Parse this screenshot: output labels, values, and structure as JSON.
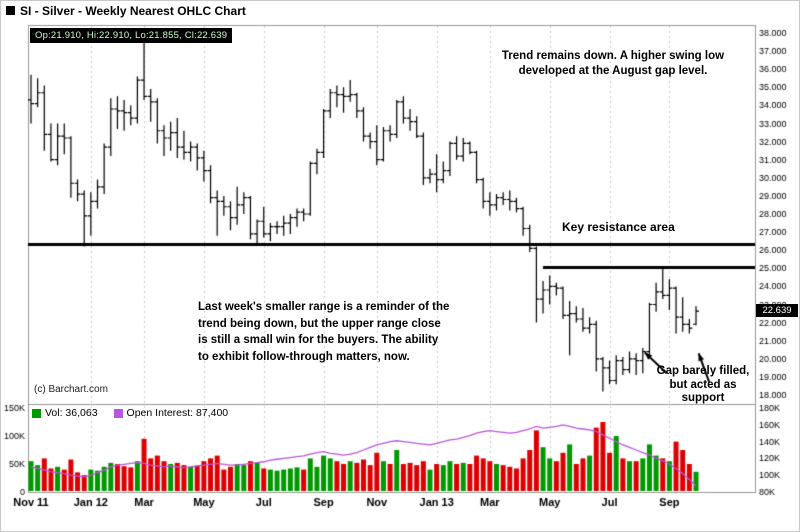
{
  "header": {
    "title": "SI - Silver - Weekly Nearest OHLC Chart"
  },
  "quote": {
    "label": "Op:21.910, Hi:22.910, Lo:21.855, Cl:22.639"
  },
  "annotations": {
    "trend": "Trend remains down.  A higher swing low\ndeveloped at the August gap level.",
    "key_resistance": "Key resistance area",
    "range_comment": "Last week's smaller range is a reminder of the\ntrend being down, but the upper range close\nis still a small win for the buyers.  The ability\nto exhibit follow-through matters, now.",
    "gap": "Gap barely filled,\nbut acted as\nsupport",
    "copyright": "(c) Barchart.com"
  },
  "legend": {
    "volume": "Vol: 36,063",
    "open_interest": "Open Interest: 87,400"
  },
  "colors": {
    "up_volume": "#009900",
    "down_volume": "#dd0000",
    "open_interest": "#bb55dd",
    "bars": "#000000",
    "grid": "#cccccc",
    "border": "#999999",
    "resistance": "#000000"
  },
  "chart_data": {
    "type": "ohlc",
    "title": "SI - Silver - Weekly Nearest OHLC Chart",
    "period": "weekly",
    "last_price": 22.639,
    "last_price_label": "22.639",
    "price_axis": {
      "min": 18,
      "max": 38,
      "tick_step": 1,
      "ticks": [
        "38.000",
        "37.000",
        "36.000",
        "35.000",
        "34.000",
        "33.000",
        "32.000",
        "31.000",
        "30.000",
        "29.000",
        "28.000",
        "27.000",
        "26.000",
        "25.000",
        "24.000",
        "23.000",
        "22.000",
        "21.000",
        "20.000",
        "19.000",
        "18.000"
      ]
    },
    "volume_axis_left": {
      "min": 0,
      "max": 150,
      "ticks": [
        {
          "label": "150K",
          "value": 150
        },
        {
          "label": "100K",
          "value": 100
        },
        {
          "label": "50K",
          "value": 50
        },
        {
          "label": "0",
          "value": 0
        }
      ]
    },
    "oi_axis_right": {
      "min": 80,
      "max": 180,
      "ticks": [
        {
          "label": "180K",
          "value": 180
        },
        {
          "label": "160K",
          "value": 160
        },
        {
          "label": "140K",
          "value": 140
        },
        {
          "label": "120K",
          "value": 120
        },
        {
          "label": "100K",
          "value": 100
        },
        {
          "label": "80K",
          "value": 80
        }
      ]
    },
    "x_axis": {
      "labels": [
        {
          "label": "Nov 11",
          "index": 0
        },
        {
          "label": "Jan 12",
          "index": 9
        },
        {
          "label": "Mar",
          "index": 17
        },
        {
          "label": "May",
          "index": 26
        },
        {
          "label": "Jul",
          "index": 35
        },
        {
          "label": "Sep",
          "index": 44
        },
        {
          "label": "Nov",
          "index": 52
        },
        {
          "label": "Jan 13",
          "index": 61
        },
        {
          "label": "Mar",
          "index": 69
        },
        {
          "label": "May",
          "index": 78
        },
        {
          "label": "Jul",
          "index": 87
        },
        {
          "label": "Sep",
          "index": 96
        }
      ]
    },
    "resistance_lines": [
      {
        "price": 26.35,
        "from_bar": 0,
        "to_right_edge": true
      },
      {
        "price": 25.05,
        "from_bar": 77,
        "to_right_edge": true
      }
    ],
    "arrows": [
      {
        "tail": {
          "bar": 95.6,
          "price": 19.2
        },
        "tip": {
          "bar": 92.3,
          "price": 20.35
        }
      },
      {
        "tail": {
          "bar": 102.0,
          "price": 18.7
        },
        "tip": {
          "bar": 100.4,
          "price": 20.3
        }
      }
    ],
    "bars": [
      [
        34.3,
        35.7,
        33.0,
        34.1
      ],
      [
        34.1,
        35.5,
        33.9,
        34.7
      ],
      [
        34.7,
        35.1,
        31.5,
        32.4
      ],
      [
        32.4,
        33.0,
        30.9,
        31.0
      ],
      [
        31.0,
        33.0,
        30.7,
        32.3
      ],
      [
        32.3,
        33.0,
        31.3,
        32.2
      ],
      [
        32.2,
        32.3,
        28.9,
        29.7
      ],
      [
        29.7,
        29.9,
        28.7,
        29.1
      ],
      [
        29.1,
        29.3,
        26.2,
        27.9
      ],
      [
        27.9,
        29.2,
        26.8,
        28.7
      ],
      [
        28.7,
        29.9,
        28.3,
        29.5
      ],
      [
        29.5,
        31.9,
        29.1,
        31.7
      ],
      [
        31.7,
        34.4,
        31.2,
        33.8
      ],
      [
        33.8,
        34.5,
        32.7,
        33.7
      ],
      [
        33.7,
        34.3,
        32.6,
        33.6
      ],
      [
        33.6,
        34.0,
        32.9,
        33.3
      ],
      [
        33.3,
        35.6,
        33.0,
        35.4
      ],
      [
        35.4,
        37.5,
        34.3,
        34.5
      ],
      [
        34.5,
        34.9,
        33.1,
        34.2
      ],
      [
        34.2,
        34.4,
        31.9,
        32.6
      ],
      [
        32.6,
        32.9,
        31.2,
        32.2
      ],
      [
        32.2,
        33.1,
        31.5,
        32.5
      ],
      [
        32.5,
        33.3,
        31.1,
        31.7
      ],
      [
        31.7,
        32.6,
        31.0,
        31.4
      ],
      [
        31.4,
        32.0,
        30.9,
        31.7
      ],
      [
        31.7,
        31.9,
        30.4,
        31.1
      ],
      [
        31.1,
        31.5,
        29.8,
        30.4
      ],
      [
        30.4,
        30.7,
        28.6,
        28.9
      ],
      [
        28.9,
        29.3,
        26.8,
        28.7
      ],
      [
        28.7,
        29.0,
        27.9,
        28.4
      ],
      [
        28.4,
        28.7,
        27.1,
        27.8
      ],
      [
        27.8,
        29.5,
        27.4,
        28.5
      ],
      [
        28.5,
        29.2,
        28.0,
        28.9
      ],
      [
        28.9,
        29.0,
        26.6,
        26.9
      ],
      [
        26.9,
        27.7,
        26.3,
        27.6
      ],
      [
        27.6,
        28.4,
        26.7,
        26.9
      ],
      [
        26.9,
        27.5,
        26.5,
        27.3
      ],
      [
        27.3,
        27.6,
        26.9,
        27.3
      ],
      [
        27.3,
        27.9,
        26.8,
        27.5
      ],
      [
        27.5,
        28.0,
        26.9,
        27.8
      ],
      [
        27.8,
        28.3,
        27.3,
        28.1
      ],
      [
        28.1,
        28.3,
        27.6,
        28.0
      ],
      [
        28.0,
        30.9,
        27.9,
        30.8
      ],
      [
        30.8,
        31.6,
        30.2,
        31.4
      ],
      [
        31.4,
        33.8,
        31.1,
        33.7
      ],
      [
        33.7,
        34.9,
        33.3,
        34.7
      ],
      [
        34.7,
        35.1,
        33.9,
        34.6
      ],
      [
        34.6,
        35.0,
        33.6,
        34.5
      ],
      [
        34.5,
        35.4,
        34.2,
        34.6
      ],
      [
        34.6,
        34.7,
        33.3,
        33.7
      ],
      [
        33.7,
        33.9,
        32.0,
        32.3
      ],
      [
        32.3,
        32.5,
        31.6,
        32.0
      ],
      [
        32.0,
        32.9,
        30.7,
        31.0
      ],
      [
        31.0,
        32.8,
        30.9,
        32.6
      ],
      [
        32.6,
        32.9,
        32.0,
        32.4
      ],
      [
        32.4,
        34.3,
        32.2,
        34.2
      ],
      [
        34.2,
        34.5,
        33.0,
        33.3
      ],
      [
        33.3,
        33.8,
        32.6,
        33.1
      ],
      [
        33.1,
        33.4,
        32.2,
        32.3
      ],
      [
        32.3,
        32.5,
        29.6,
        30.0
      ],
      [
        30.0,
        30.5,
        29.7,
        30.2
      ],
      [
        30.2,
        31.3,
        29.2,
        29.9
      ],
      [
        29.9,
        30.9,
        29.7,
        30.4
      ],
      [
        30.4,
        32.0,
        30.1,
        31.9
      ],
      [
        31.9,
        32.3,
        31.0,
        31.2
      ],
      [
        31.2,
        32.2,
        30.9,
        31.9
      ],
      [
        31.9,
        32.0,
        31.3,
        31.4
      ],
      [
        31.4,
        31.5,
        29.7,
        29.9
      ],
      [
        29.9,
        30.0,
        28.3,
        28.7
      ],
      [
        28.7,
        29.2,
        27.9,
        28.5
      ],
      [
        28.5,
        29.1,
        28.2,
        28.9
      ],
      [
        28.9,
        29.2,
        28.5,
        28.8
      ],
      [
        28.8,
        29.3,
        28.2,
        28.7
      ],
      [
        28.7,
        28.9,
        28.1,
        28.3
      ],
      [
        28.3,
        28.4,
        26.8,
        27.2
      ],
      [
        27.2,
        27.4,
        25.9,
        26.1
      ],
      [
        26.1,
        26.2,
        22.0,
        23.3
      ],
      [
        23.3,
        24.3,
        22.5,
        23.8
      ],
      [
        23.8,
        24.6,
        23.0,
        24.0
      ],
      [
        24.0,
        24.2,
        23.5,
        23.9
      ],
      [
        23.9,
        24.0,
        22.2,
        22.4
      ],
      [
        22.4,
        23.2,
        20.2,
        22.5
      ],
      [
        22.5,
        22.9,
        22.0,
        22.2
      ],
      [
        22.2,
        22.8,
        21.5,
        21.7
      ],
      [
        21.7,
        22.3,
        21.4,
        21.9
      ],
      [
        21.9,
        22.1,
        19.3,
        20.0
      ],
      [
        20.0,
        20.1,
        18.2,
        19.5
      ],
      [
        19.5,
        19.9,
        18.6,
        18.8
      ],
      [
        18.8,
        20.2,
        18.6,
        19.9
      ],
      [
        19.9,
        20.1,
        19.1,
        19.4
      ],
      [
        19.4,
        20.4,
        19.2,
        20.0
      ],
      [
        20.0,
        20.3,
        19.1,
        19.9
      ],
      [
        19.9,
        20.6,
        19.2,
        20.4
      ],
      [
        20.4,
        23.1,
        20.2,
        23.0
      ],
      [
        23.0,
        24.2,
        22.6,
        23.7
      ],
      [
        23.7,
        25.1,
        23.3,
        23.5
      ],
      [
        23.5,
        24.4,
        22.7,
        23.9
      ],
      [
        23.9,
        24.0,
        21.4,
        22.3
      ],
      [
        22.3,
        23.4,
        21.5,
        21.9
      ],
      [
        21.9,
        22.2,
        21.4,
        21.7
      ],
      [
        21.91,
        22.91,
        21.855,
        22.639
      ]
    ],
    "volume_k": [
      55,
      48,
      60,
      42,
      45,
      40,
      58,
      35,
      30,
      40,
      38,
      45,
      52,
      50,
      46,
      44,
      55,
      95,
      60,
      65,
      55,
      50,
      52,
      48,
      45,
      47,
      55,
      60,
      65,
      40,
      45,
      50,
      48,
      55,
      52,
      42,
      40,
      38,
      40,
      42,
      44,
      40,
      60,
      45,
      65,
      60,
      55,
      50,
      55,
      52,
      58,
      48,
      70,
      55,
      50,
      75,
      50,
      52,
      48,
      55,
      40,
      50,
      48,
      55,
      50,
      52,
      50,
      65,
      60,
      55,
      50,
      48,
      45,
      42,
      60,
      75,
      110,
      80,
      60,
      55,
      70,
      85,
      50,
      60,
      65,
      115,
      125,
      70,
      100,
      60,
      55,
      55,
      60,
      85,
      65,
      60,
      55,
      90,
      75,
      50,
      36.063
    ],
    "open_interest_k": [
      110,
      108,
      106,
      104,
      103,
      102,
      100,
      99,
      98,
      100,
      103,
      106,
      110,
      112,
      113,
      114,
      115,
      114,
      112,
      111,
      110,
      111,
      110,
      109,
      110,
      111,
      112,
      113,
      114,
      113,
      112,
      112,
      113,
      114,
      115,
      116,
      118,
      119,
      120,
      121,
      122,
      123,
      125,
      127,
      128,
      126,
      125,
      124,
      125,
      127,
      130,
      133,
      136,
      138,
      140,
      141,
      140,
      139,
      138,
      137,
      136,
      138,
      140,
      142,
      143,
      145,
      147,
      150,
      152,
      153,
      152,
      151,
      150,
      151,
      153,
      155,
      158,
      156,
      157,
      158,
      160,
      158,
      156,
      155,
      154,
      152,
      148,
      144,
      140,
      136,
      133,
      130,
      127,
      124,
      120,
      117,
      113,
      108,
      102,
      95,
      87.4
    ]
  }
}
